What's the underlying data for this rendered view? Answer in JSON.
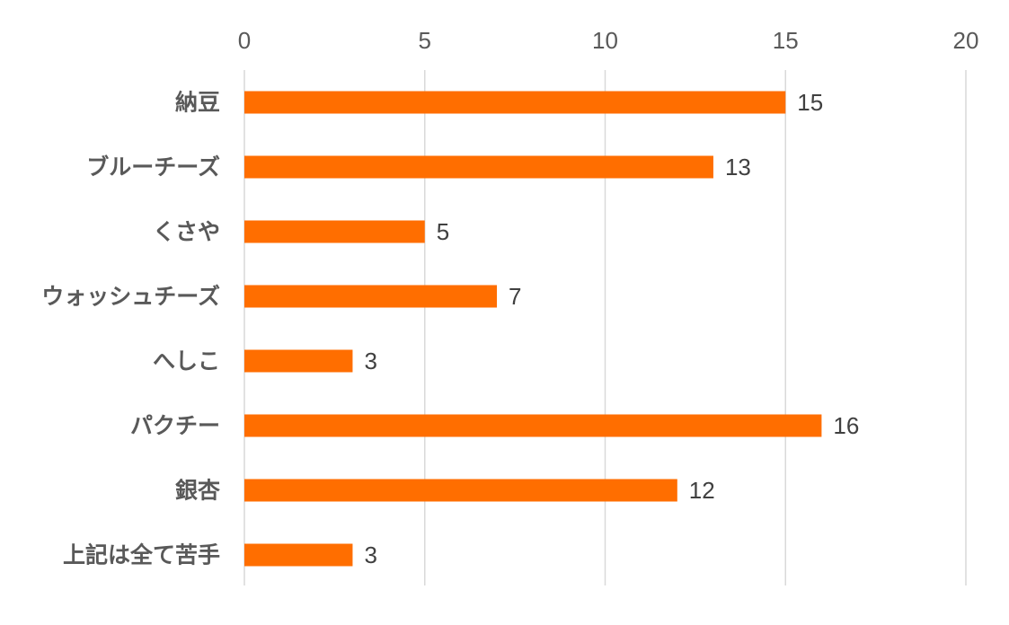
{
  "chart_data": {
    "type": "bar",
    "orientation": "horizontal",
    "title": "",
    "xlabel": "",
    "ylabel": "",
    "categories": [
      "納豆",
      "ブルーチーズ",
      "くさや",
      "ウォッシュチーズ",
      "へしこ",
      "パクチー",
      "銀杏",
      "上記は全て苦手"
    ],
    "values": [
      15,
      13,
      5,
      7,
      3,
      16,
      12,
      3
    ],
    "xlim": [
      0,
      20
    ],
    "xticks": [
      0,
      5,
      10,
      15,
      20
    ],
    "x_axis_position": "top",
    "grid": true,
    "data_labels": true,
    "legend": "none",
    "bar_color": "#FF6E00",
    "grid_color": "#D9D9D9",
    "text_color": "#595959"
  }
}
